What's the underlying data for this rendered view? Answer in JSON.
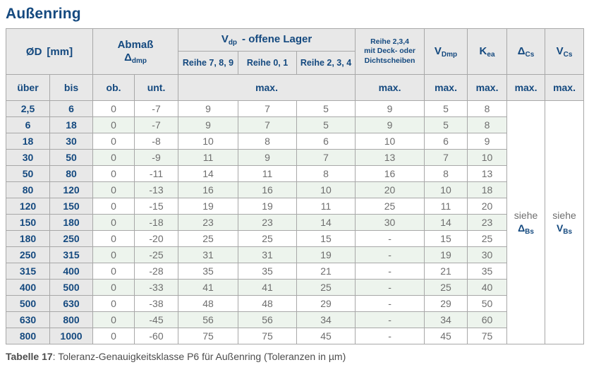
{
  "title": "Außenring",
  "caption": {
    "bold": "Tabelle 17",
    "rest": ": Toleranz-Genauigkeitsklasse P6 für Außenring (Toleranzen in µm)"
  },
  "colors": {
    "accent_blue": "#14497f",
    "header_bg": "#e8e8e8",
    "stripe_green": "#edf4ed",
    "value_text": "#6e6e6e"
  },
  "table": {
    "header": {
      "d_label": "ØD",
      "d_unit": "[mm]",
      "abmass_line1": "Abmaß",
      "abmass_sym": "Δ",
      "abmass_sub": "dmp",
      "vdp_main": "V",
      "vdp_sub": "dp",
      "vdp_rest": "-  offene Lager",
      "reihe_789": "Reihe 7, 8, 9",
      "reihe_01": "Reihe 0, 1",
      "reihe_234": "Reihe 2, 3, 4",
      "deck_line1": "Reihe 2,3,4",
      "deck_line2": "mit Deck- oder",
      "deck_line3": "Dichtscheiben",
      "vdmp_main": "V",
      "vdmp_sub": "Dmp",
      "kea_main": "K",
      "kea_sub": "ea",
      "dcs_main": "Δ",
      "dcs_sub": "Cs",
      "vcs_main": "V",
      "vcs_sub": "Cs",
      "ueber": "über",
      "bis": "bis",
      "ob": "ob.",
      "unt": "unt.",
      "max": "max."
    },
    "siehe": {
      "dbs_word": "siehe",
      "dbs_main": "Δ",
      "dbs_sub": "Bs",
      "vbs_word": "siehe",
      "vbs_main": "V",
      "vbs_sub": "Bs"
    },
    "rows": [
      [
        "2,5",
        "6",
        "0",
        "-7",
        "9",
        "7",
        "5",
        "9",
        "5",
        "8"
      ],
      [
        "6",
        "18",
        "0",
        "-7",
        "9",
        "7",
        "5",
        "9",
        "5",
        "8"
      ],
      [
        "18",
        "30",
        "0",
        "-8",
        "10",
        "8",
        "6",
        "10",
        "6",
        "9"
      ],
      [
        "30",
        "50",
        "0",
        "-9",
        "11",
        "9",
        "7",
        "13",
        "7",
        "10"
      ],
      [
        "50",
        "80",
        "0",
        "-11",
        "14",
        "11",
        "8",
        "16",
        "8",
        "13"
      ],
      [
        "80",
        "120",
        "0",
        "-13",
        "16",
        "16",
        "10",
        "20",
        "10",
        "18"
      ],
      [
        "120",
        "150",
        "0",
        "-15",
        "19",
        "19",
        "11",
        "25",
        "11",
        "20"
      ],
      [
        "150",
        "180",
        "0",
        "-18",
        "23",
        "23",
        "14",
        "30",
        "14",
        "23"
      ],
      [
        "180",
        "250",
        "0",
        "-20",
        "25",
        "25",
        "15",
        "-",
        "15",
        "25"
      ],
      [
        "250",
        "315",
        "0",
        "-25",
        "31",
        "31",
        "19",
        "-",
        "19",
        "30"
      ],
      [
        "315",
        "400",
        "0",
        "-28",
        "35",
        "35",
        "21",
        "-",
        "21",
        "35"
      ],
      [
        "400",
        "500",
        "0",
        "-33",
        "41",
        "41",
        "25",
        "-",
        "25",
        "40"
      ],
      [
        "500",
        "630",
        "0",
        "-38",
        "48",
        "48",
        "29",
        "-",
        "29",
        "50"
      ],
      [
        "630",
        "800",
        "0",
        "-45",
        "56",
        "56",
        "34",
        "-",
        "34",
        "60"
      ],
      [
        "800",
        "1000",
        "0",
        "-60",
        "75",
        "75",
        "45",
        "-",
        "45",
        "75"
      ]
    ]
  }
}
